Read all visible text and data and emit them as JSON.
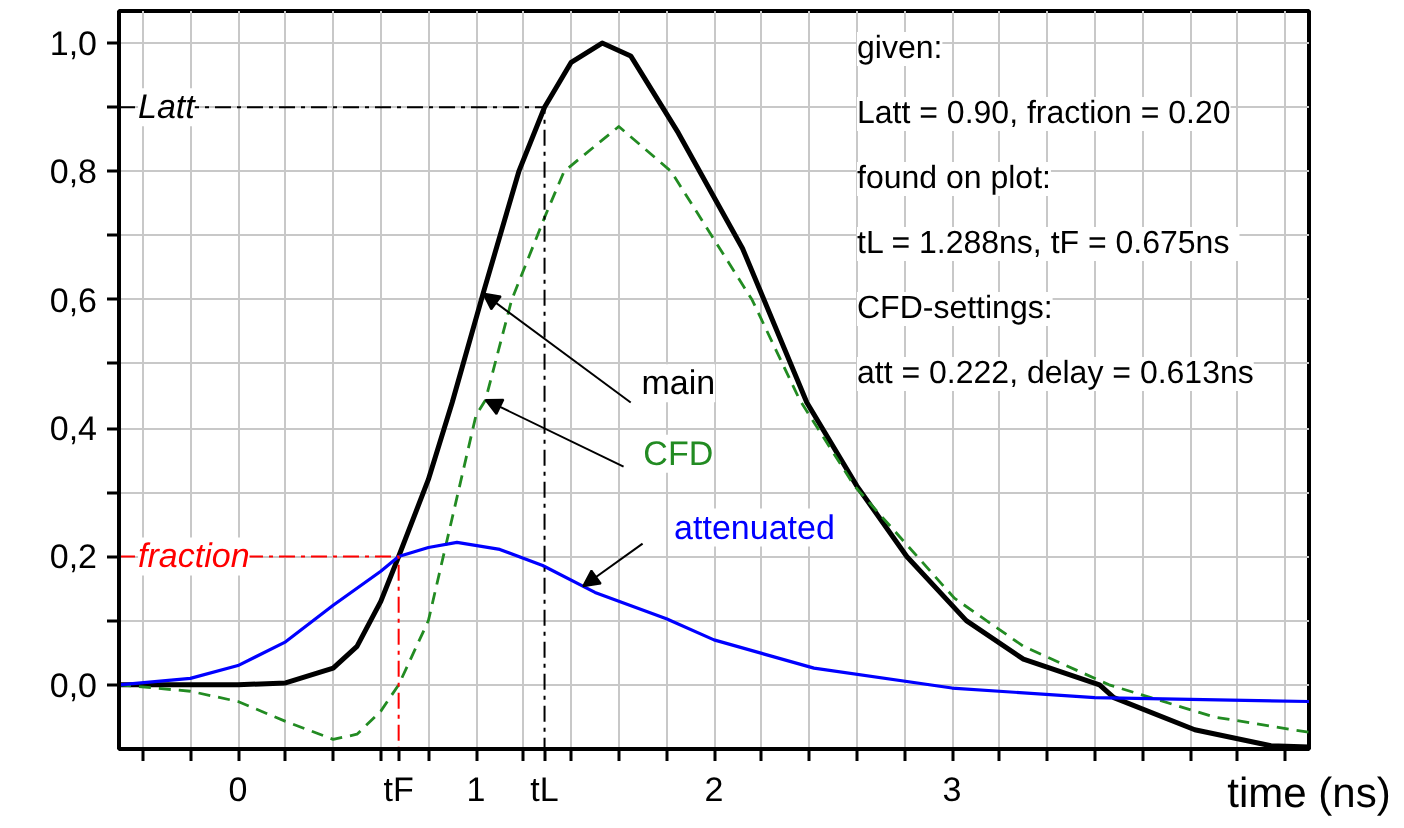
{
  "chart_data": {
    "type": "line",
    "xlabel": "time (ns)",
    "xlim": [
      -0.5,
      4.5
    ],
    "ylim": [
      -0.1,
      1.05
    ],
    "xticks": [
      {
        "value": -0.4,
        "label": null
      },
      {
        "value": -0.2,
        "label": null
      },
      0,
      {
        "value": 0.2,
        "label": null
      },
      {
        "value": 0.4,
        "label": null
      },
      {
        "value": 0.6,
        "label": null
      },
      {
        "value": 0.8,
        "label": null
      },
      1,
      {
        "value": 1.2,
        "label": null
      },
      {
        "value": 1.4,
        "label": null
      },
      {
        "value": 1.6,
        "label": null
      },
      {
        "value": 1.8,
        "label": null
      },
      2,
      {
        "value": 2.2,
        "label": null
      },
      {
        "value": 2.4,
        "label": null
      },
      {
        "value": 2.6,
        "label": null
      },
      {
        "value": 2.8,
        "label": null
      },
      3,
      {
        "value": 3.2,
        "label": null
      },
      {
        "value": 3.4,
        "label": null
      },
      {
        "value": 3.6,
        "label": null
      },
      {
        "value": 3.8,
        "label": null
      },
      {
        "value": 4.0,
        "label": null
      },
      {
        "value": 4.2,
        "label": null
      },
      {
        "value": 4.4,
        "label": null
      },
      {
        "value": 0.675,
        "label": "tF"
      },
      {
        "value": 1.288,
        "label": "tL"
      }
    ],
    "yticks": [
      {
        "value": 0,
        "label": "0,0"
      },
      {
        "value": 0.1,
        "label": null
      },
      {
        "value": 0.2,
        "label": "0,2"
      },
      {
        "value": 0.3,
        "label": null
      },
      {
        "value": 0.4,
        "label": "0,4"
      },
      {
        "value": 0.5,
        "label": null
      },
      {
        "value": 0.6,
        "label": "0,6"
      },
      {
        "value": 0.7,
        "label": null
      },
      {
        "value": 0.8,
        "label": "0,8"
      },
      {
        "value": 0.9,
        "label": null
      },
      {
        "value": 1.0,
        "label": "1,0"
      }
    ],
    "grid": true,
    "series": [
      {
        "name": "main",
        "color": "#000000",
        "line_style": "solid",
        "x": [
          -0.5,
          0,
          0.2,
          0.4,
          0.5,
          0.6,
          0.675,
          0.8,
          0.9,
          1.03,
          1.18,
          1.288,
          1.4,
          1.53,
          1.65,
          1.85,
          2.12,
          2.39,
          2.6,
          2.81,
          3.06,
          3.3,
          3.62,
          3.68,
          4.02,
          4.34,
          4.5
        ],
        "values": [
          0,
          0,
          0.003,
          0.026,
          0.06,
          0.13,
          0.2,
          0.32,
          0.44,
          0.61,
          0.8,
          0.9,
          0.97,
          1.0,
          0.98,
          0.86,
          0.68,
          0.44,
          0.31,
          0.2,
          0.1,
          0.04,
          0.0,
          -0.02,
          -0.07,
          -0.095,
          -0.097
        ]
      },
      {
        "name": "CFD",
        "color": "#228b22",
        "line_style": "dashed",
        "x": [
          -0.5,
          -0.2,
          0,
          0.2,
          0.4,
          0.5,
          0.6,
          0.675,
          0.8,
          0.9,
          1.0,
          1.04,
          1.15,
          1.29,
          1.37,
          1.6,
          1.82,
          2.16,
          2.36,
          2.59,
          3.01,
          3.3,
          3.66,
          4.1,
          4.5
        ],
        "values": [
          0,
          -0.01,
          -0.026,
          -0.057,
          -0.085,
          -0.077,
          -0.041,
          0,
          0.1,
          0.26,
          0.42,
          0.444,
          0.6,
          0.73,
          0.8,
          0.87,
          0.8,
          0.6,
          0.444,
          0.31,
          0.135,
          0.06,
          0,
          -0.05,
          -0.074
        ]
      },
      {
        "name": "attenuated",
        "color": "#0000ff",
        "line_style": "solid",
        "x": [
          -0.5,
          -0.2,
          0,
          0.2,
          0.4,
          0.6,
          0.675,
          0.8,
          0.92,
          1.1,
          1.28,
          1.5,
          1.8,
          2.0,
          2.42,
          3.0,
          3.6,
          4.5
        ],
        "values": [
          0,
          0.01,
          0.03,
          0.067,
          0.124,
          0.177,
          0.2,
          0.214,
          0.222,
          0.211,
          0.186,
          0.144,
          0.103,
          0.07,
          0.026,
          -0.005,
          -0.02,
          -0.026
        ]
      },
      {
        "name": "Latt",
        "color": "#000000",
        "line_style": "dashdot",
        "x": [
          -0.5,
          1.288,
          1.288
        ],
        "values": [
          0.9,
          0.9,
          -0.1
        ]
      },
      {
        "name": "fraction",
        "color": "#ff0000",
        "line_style": "dashdot",
        "x": [
          -0.5,
          0.675,
          0.675
        ],
        "values": [
          0.2,
          0.2,
          -0.1
        ]
      }
    ],
    "annotations": [
      "given:",
      "Latt = 0.90, fraction = 0.20",
      "found on plot:",
      "tL = 1.288ns,  tF = 0.675ns",
      "CFD-settings:",
      "att = 0.222, delay = 0.613ns"
    ]
  }
}
